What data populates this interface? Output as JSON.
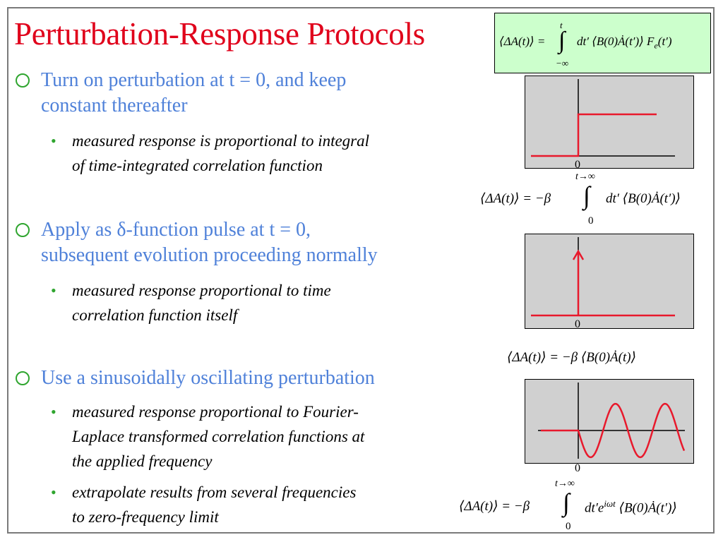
{
  "slide": {
    "title": "Perturbation-Response Protocols",
    "bullets": [
      {
        "lines": [
          "Turn on perturbation at t = 0, and keep",
          "constant thereafter"
        ],
        "subs": [
          {
            "lines": [
              "measured response is proportional to integral",
              "of time-integrated correlation function"
            ]
          }
        ]
      },
      {
        "lines": [
          "Apply as δ-function pulse at t = 0,",
          "subsequent evolution proceeding normally"
        ],
        "subs": [
          {
            "lines": [
              "measured response proportional to time",
              "correlation function itself"
            ]
          }
        ]
      },
      {
        "lines": [
          "Use a sinusoidally oscillating perturbation"
        ],
        "subs": [
          {
            "lines": [
              "measured response proportional to Fourier-",
              "Laplace transformed correlation functions at",
              "the applied frequency"
            ]
          },
          {
            "lines": [
              "extrapolate results from several frequencies",
              "to zero-frequency limit"
            ]
          }
        ]
      }
    ],
    "icons": {
      "bullet_circle": "hollow-circle-icon",
      "bullet_dot": "bullet-dot-icon"
    },
    "colors": {
      "title": "#e0001b",
      "bullet_text": "#4f81d9",
      "bullet_marker": "#2fa52f",
      "curve": "#e8192c",
      "plot_bg": "#d0d0d0",
      "eq_box": "#ccffcc"
    }
  },
  "equations": {
    "top": {
      "lhs": "⟨ΔA(t)⟩ =",
      "upper": "t",
      "lower": "−∞",
      "rhs": "dt′ ⟨B(0)Ȧ(t′)⟩ F",
      "rhs_sub": "e",
      "rhs_tail": "(t′)"
    },
    "step": {
      "lhs": "⟨ΔA(t)⟩ = −β",
      "upper": "t→∞",
      "lower": "0",
      "rhs": "dt′ ⟨B(0)Ȧ(t′)⟩"
    },
    "pulse": {
      "text": "⟨ΔA(t)⟩ = −β ⟨B(0)Ȧ(t)⟩"
    },
    "sine": {
      "lhs": "⟨ΔA(t)⟩ = −β",
      "upper": "t→∞",
      "lower": "0",
      "rhs": "dt′e",
      "rhs_sup": "iωt",
      "rhs_tail": " ⟨B(0)Ȧ(t′)⟩"
    }
  },
  "plots": {
    "step": {
      "zero_label": "0",
      "pre_level": 0,
      "post_level": 1
    },
    "pulse": {
      "zero_label": "0",
      "pre_level": 0,
      "post_level": 0
    },
    "sine": {
      "zero_label": "0",
      "amplitude": 1,
      "cycles": 2
    }
  }
}
